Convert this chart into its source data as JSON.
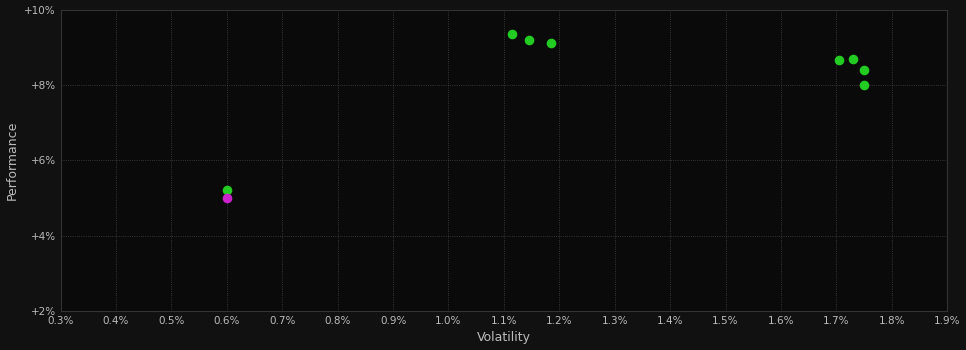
{
  "background_color": "#111111",
  "plot_bg_color": "#0a0a0a",
  "grid_color": "#555555",
  "text_color": "#bbbbbb",
  "xlabel": "Volatility",
  "ylabel": "Performance",
  "xlim": [
    0.003,
    0.019
  ],
  "ylim": [
    0.02,
    0.1
  ],
  "xticks": [
    0.003,
    0.004,
    0.005,
    0.006,
    0.007,
    0.008,
    0.009,
    0.01,
    0.011,
    0.012,
    0.013,
    0.014,
    0.015,
    0.016,
    0.017,
    0.018,
    0.019
  ],
  "yticks": [
    0.02,
    0.04,
    0.06,
    0.08,
    0.1
  ],
  "green_points": [
    [
      0.006,
      0.052
    ],
    [
      0.01115,
      0.0935
    ],
    [
      0.01145,
      0.092
    ],
    [
      0.01185,
      0.091
    ],
    [
      0.01705,
      0.0865
    ],
    [
      0.0173,
      0.0868
    ],
    [
      0.0175,
      0.084
    ],
    [
      0.0175,
      0.08
    ]
  ],
  "magenta_points": [
    [
      0.006,
      0.05
    ]
  ],
  "point_size": 35
}
